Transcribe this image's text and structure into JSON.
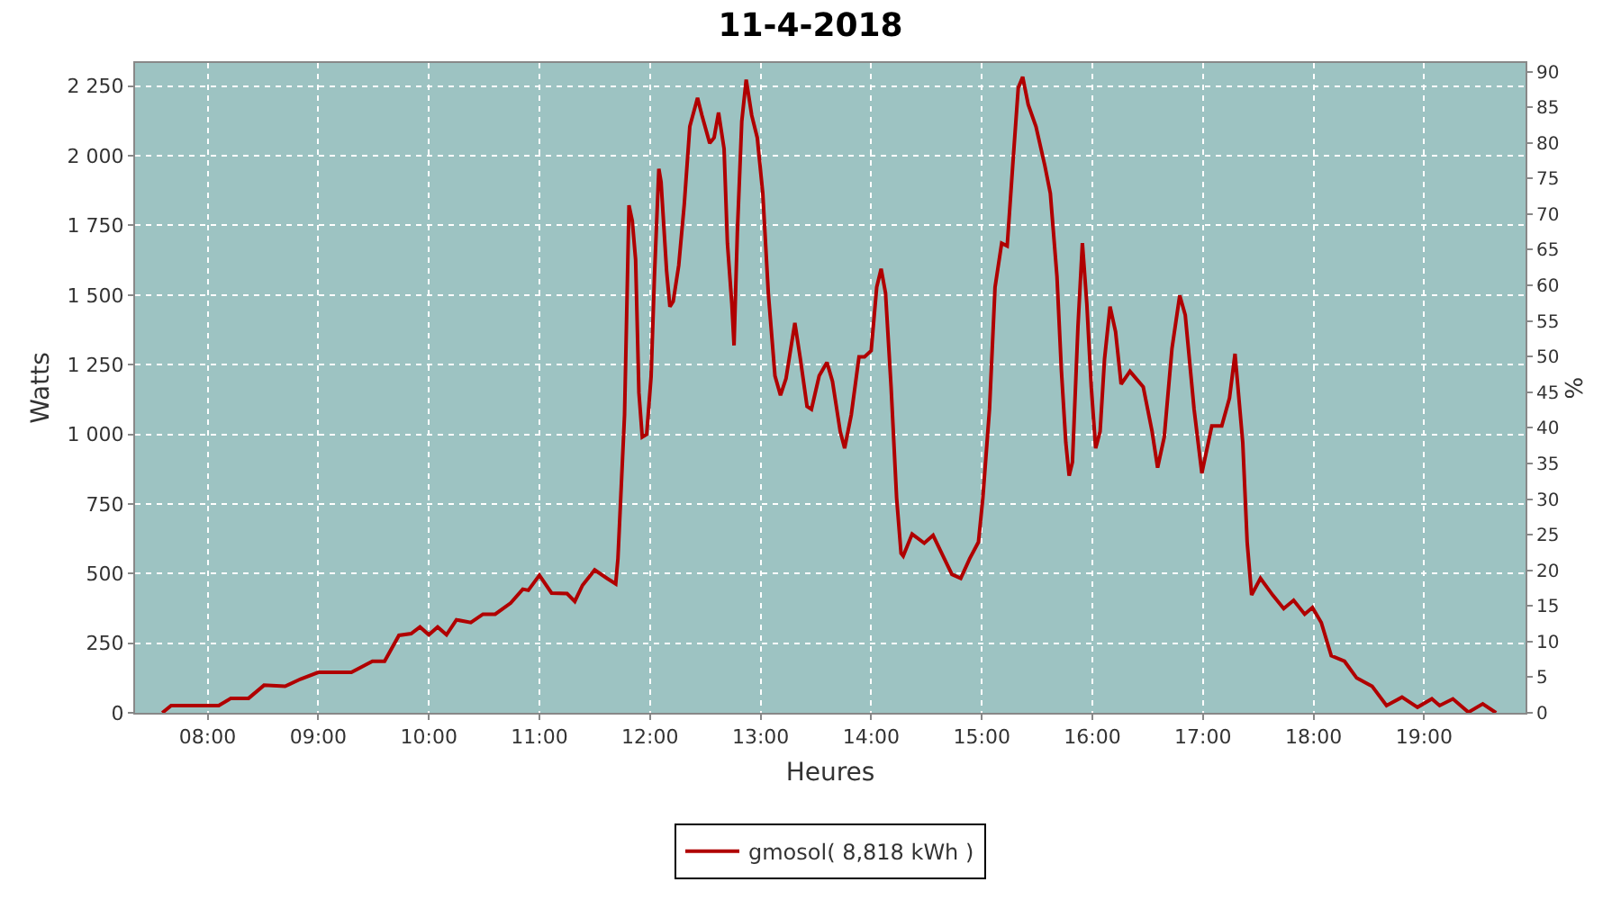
{
  "chart_data": {
    "type": "line",
    "title": "11-4-2018",
    "xlabel": "Heures",
    "ylabel": "Watts",
    "y2label": "%",
    "x": [
      7.59,
      7.67,
      8.1,
      8.21,
      8.37,
      8.51,
      8.7,
      8.84,
      9.0,
      9.3,
      9.49,
      9.6,
      9.73,
      9.84,
      9.92,
      10.0,
      10.08,
      10.16,
      10.25,
      10.38,
      10.49,
      10.6,
      10.74,
      10.85,
      10.9,
      11.0,
      11.11,
      11.25,
      11.32,
      11.39,
      11.5,
      11.61,
      11.69,
      11.71,
      11.77,
      11.81,
      11.84,
      11.87,
      11.9,
      11.93,
      11.97,
      12.01,
      12.04,
      12.08,
      12.1,
      12.15,
      12.18,
      12.21,
      12.26,
      12.31,
      12.36,
      12.43,
      12.47,
      12.54,
      12.58,
      12.62,
      12.67,
      12.7,
      12.74,
      12.76,
      12.79,
      12.83,
      12.87,
      12.92,
      12.97,
      13.02,
      13.07,
      13.13,
      13.18,
      13.23,
      13.31,
      13.36,
      13.42,
      13.46,
      13.53,
      13.6,
      13.65,
      13.72,
      13.76,
      13.82,
      13.89,
      13.94,
      14.0,
      14.05,
      14.09,
      14.13,
      14.18,
      14.23,
      14.27,
      14.29,
      14.37,
      14.48,
      14.56,
      14.65,
      14.73,
      14.81,
      14.89,
      14.97,
      15.01,
      15.07,
      15.12,
      15.18,
      15.23,
      15.28,
      15.33,
      15.37,
      15.42,
      15.49,
      15.57,
      15.62,
      15.68,
      15.72,
      15.76,
      15.79,
      15.82,
      15.87,
      15.91,
      15.95,
      15.99,
      16.03,
      16.07,
      16.11,
      16.16,
      16.21,
      16.26,
      16.34,
      16.46,
      16.54,
      16.59,
      16.65,
      16.72,
      16.79,
      16.84,
      16.92,
      16.99,
      17.08,
      17.17,
      17.24,
      17.29,
      17.36,
      17.4,
      17.44,
      17.52,
      17.63,
      17.73,
      17.82,
      17.92,
      17.99,
      18.07,
      18.16,
      18.28,
      18.39,
      18.53,
      18.66,
      18.8,
      18.94,
      19.07,
      19.14,
      19.26,
      19.4,
      19.53,
      19.65
    ],
    "series": [
      {
        "name": "gmosol( 8,818 kWh )",
        "color": "#b00000",
        "values": [
          0,
          26,
          26,
          52,
          52,
          99,
          95,
          121,
          145,
          145,
          185,
          185,
          278,
          284,
          308,
          280,
          308,
          280,
          334,
          324,
          354,
          354,
          394,
          444,
          440,
          494,
          430,
          428,
          400,
          458,
          513,
          483,
          463,
          553,
          1070,
          1822,
          1766,
          1627,
          1149,
          990,
          1000,
          1207,
          1565,
          1953,
          1906,
          1587,
          1458,
          1477,
          1607,
          1826,
          2105,
          2208,
          2145,
          2045,
          2065,
          2155,
          2025,
          1686,
          1468,
          1319,
          1726,
          2124,
          2273,
          2145,
          2065,
          1865,
          1507,
          1210,
          1140,
          1200,
          1400,
          1270,
          1100,
          1090,
          1210,
          1258,
          1190,
          1010,
          950,
          1070,
          1278,
          1278,
          1300,
          1528,
          1594,
          1507,
          1170,
          772,
          573,
          563,
          642,
          609,
          637,
          563,
          497,
          483,
          553,
          613,
          772,
          1090,
          1528,
          1686,
          1676,
          1965,
          2244,
          2283,
          2184,
          2105,
          1965,
          1865,
          1567,
          1229,
          970,
          851,
          900,
          1388,
          1686,
          1468,
          1170,
          950,
          1010,
          1269,
          1458,
          1368,
          1180,
          1226,
          1170,
          1010,
          880,
          990,
          1308,
          1498,
          1428,
          1090,
          860,
          1030,
          1030,
          1130,
          1289,
          970,
          612,
          423,
          483,
          423,
          374,
          404,
          354,
          378,
          324,
          205,
          185,
          125,
          95,
          26,
          56,
          20,
          50,
          26,
          50,
          2,
          32,
          0
        ]
      }
    ],
    "xlim": [
      7.344,
      19.917
    ],
    "xticks": [
      {
        "value": 8,
        "label": "08:00"
      },
      {
        "value": 9,
        "label": "09:00"
      },
      {
        "value": 10,
        "label": "10:00"
      },
      {
        "value": 11,
        "label": "11:00"
      },
      {
        "value": 12,
        "label": "12:00"
      },
      {
        "value": 13,
        "label": "13:00"
      },
      {
        "value": 14,
        "label": "14:00"
      },
      {
        "value": 15,
        "label": "15:00"
      },
      {
        "value": 16,
        "label": "16:00"
      },
      {
        "value": 17,
        "label": "17:00"
      },
      {
        "value": 18,
        "label": "18:00"
      },
      {
        "value": 19,
        "label": "19:00"
      }
    ],
    "ylim": [
      0,
      2333
    ],
    "yticks": [
      0,
      250,
      500,
      750,
      {
        "value": 1000,
        "label": "1 000"
      },
      {
        "value": 1250,
        "label": "1 250"
      },
      {
        "value": 1500,
        "label": "1 500"
      },
      {
        "value": 1750,
        "label": "1 750"
      },
      {
        "value": 2000,
        "label": "2 000"
      },
      {
        "value": 2250,
        "label": "2 250"
      }
    ],
    "y2lim": [
      0,
      91.2
    ],
    "y2ticks": [
      0,
      5,
      10,
      15,
      20,
      25,
      30,
      35,
      40,
      45,
      50,
      55,
      60,
      65,
      70,
      75,
      80,
      85,
      90
    ],
    "grid": true,
    "legend": "bottom",
    "marker": "none",
    "line_style": "solid"
  }
}
